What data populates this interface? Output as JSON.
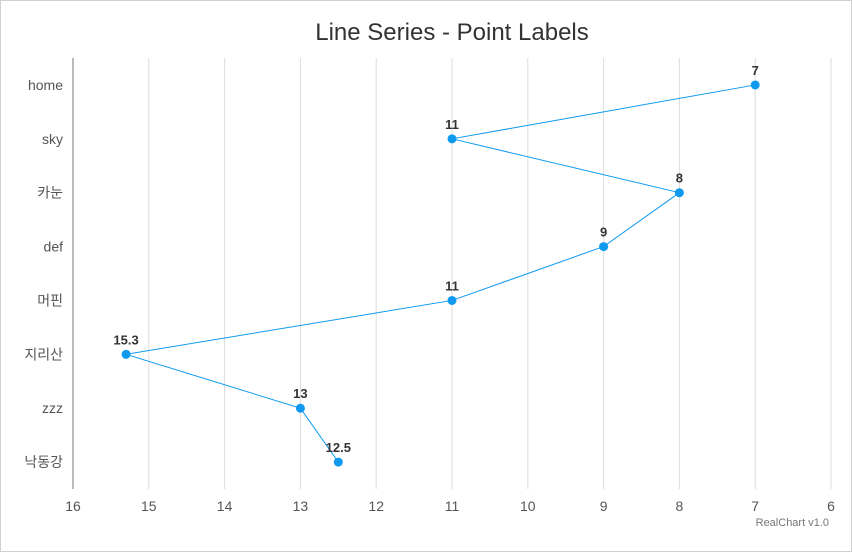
{
  "chart_data": {
    "type": "line",
    "title": "Line Series - Point Labels",
    "credit": "RealChart v1.0",
    "categories": [
      "home",
      "sky",
      "카눈",
      "def",
      "머핀",
      "지리산",
      "zzz",
      "낙동강"
    ],
    "values": [
      7,
      11,
      8,
      9,
      11,
      15.3,
      13,
      12.5
    ],
    "value_labels": [
      "7",
      "11",
      "8",
      "9",
      "11",
      "15.3",
      "13",
      "12.5"
    ],
    "orientation": "inverted",
    "value_axis": {
      "min": 6,
      "max": 16,
      "reversed": true,
      "ticks": [
        "16",
        "15",
        "14",
        "13",
        "12",
        "11",
        "10",
        "9",
        "8",
        "7",
        "6"
      ]
    },
    "grid": true,
    "colors": {
      "series": "#0f9af0",
      "point": "#0f9af0"
    }
  }
}
